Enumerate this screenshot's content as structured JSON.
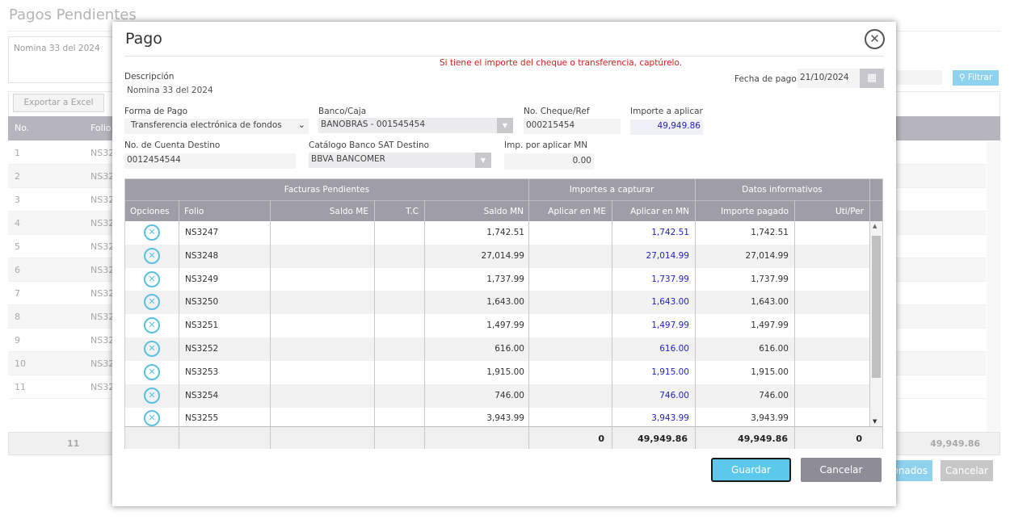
{
  "background": {
    "title": "Pagos Pendientes",
    "description": "Nomina 33 del 2024",
    "export_label": "Exportar a Excel",
    "filter_label": "Filtrar",
    "columns": [
      "No.",
      "Folio"
    ],
    "rows": [
      {
        "no": "1",
        "folio": "NS32"
      },
      {
        "no": "2",
        "folio": "NS32"
      },
      {
        "no": "3",
        "folio": "NS32"
      },
      {
        "no": "4",
        "folio": "NS32"
      },
      {
        "no": "5",
        "folio": "NS32"
      },
      {
        "no": "6",
        "folio": "NS32"
      },
      {
        "no": "7",
        "folio": "NS32"
      },
      {
        "no": "8",
        "folio": "NS32"
      },
      {
        "no": "9",
        "folio": "NS32"
      },
      {
        "no": "10",
        "folio": "NS32"
      },
      {
        "no": "11",
        "folio": "NS32"
      }
    ],
    "footer_count": "11",
    "footer_total": "49,949.86",
    "selected_label": "onados",
    "cancel_label": "Cancelar"
  },
  "modal": {
    "title": "Pago",
    "warning": "Si tiene el importe del cheque o transferencia, captúrelo.",
    "descripcion_label": "Descripción",
    "descripcion_value": "Nomina 33 del 2024",
    "fecha_label": "Fecha de pago",
    "fecha_value": "21/10/2024",
    "forma_label": "Forma de Pago",
    "forma_value": "Transferencia electrónica de fondos",
    "banco_label": "Banco/Caja",
    "banco_value": "BANOBRAS - 001545454",
    "cheque_label": "No. Cheque/Ref",
    "cheque_value": "000215454",
    "importe_label": "Importe a aplicar",
    "importe_value": "49,949.86",
    "cuenta_label": "No. de Cuenta Destino",
    "cuenta_value": "0012454544",
    "catalogo_label": "Catálogo Banco SAT Destino",
    "catalogo_value": "BBVA BANCOMER",
    "porAplicar_label": "Imp. por aplicar MN",
    "porAplicar_value": "0.00",
    "grid": {
      "groups": [
        "Facturas Pendientes",
        "Importes a capturar",
        "Datos informativos"
      ],
      "columns": [
        "Opciones",
        "Folio",
        "Saldo ME",
        "T.C",
        "Saldo MN",
        "Aplicar en ME",
        "Aplicar en MN",
        "Importe pagado",
        "Uti/Per"
      ],
      "rows": [
        {
          "folio": "NS3247",
          "saldo_mn": "1,742.51",
          "aplicar_mn": "1,742.51",
          "pagado": "1,742.51"
        },
        {
          "folio": "NS3248",
          "saldo_mn": "27,014.99",
          "aplicar_mn": "27,014.99",
          "pagado": "27,014.99"
        },
        {
          "folio": "NS3249",
          "saldo_mn": "1,737.99",
          "aplicar_mn": "1,737.99",
          "pagado": "1,737.99"
        },
        {
          "folio": "NS3250",
          "saldo_mn": "1,643.00",
          "aplicar_mn": "1,643.00",
          "pagado": "1,643.00"
        },
        {
          "folio": "NS3251",
          "saldo_mn": "1,497.99",
          "aplicar_mn": "1,497.99",
          "pagado": "1,497.99"
        },
        {
          "folio": "NS3252",
          "saldo_mn": "616.00",
          "aplicar_mn": "616.00",
          "pagado": "616.00"
        },
        {
          "folio": "NS3253",
          "saldo_mn": "1,915.00",
          "aplicar_mn": "1,915.00",
          "pagado": "1,915.00"
        },
        {
          "folio": "NS3254",
          "saldo_mn": "746.00",
          "aplicar_mn": "746.00",
          "pagado": "746.00"
        },
        {
          "folio": "NS3255",
          "saldo_mn": "3,943.99",
          "aplicar_mn": "3,943.99",
          "pagado": "3,943.99"
        }
      ],
      "totals": {
        "aplicar_me": "0",
        "aplicar_mn": "49,949.86",
        "pagado": "49,949.86",
        "uti": "0"
      }
    },
    "save_label": "Guardar",
    "cancel_label": "Cancelar"
  },
  "colors": {
    "accent": "#5cc8ec",
    "header": "#9f9ea7",
    "warning": "#e01b1b",
    "link": "#2222c8"
  },
  "icons": {
    "close": "close-icon",
    "calendar": "calendar-icon",
    "remove": "remove-circle-icon",
    "search": "search-icon"
  }
}
